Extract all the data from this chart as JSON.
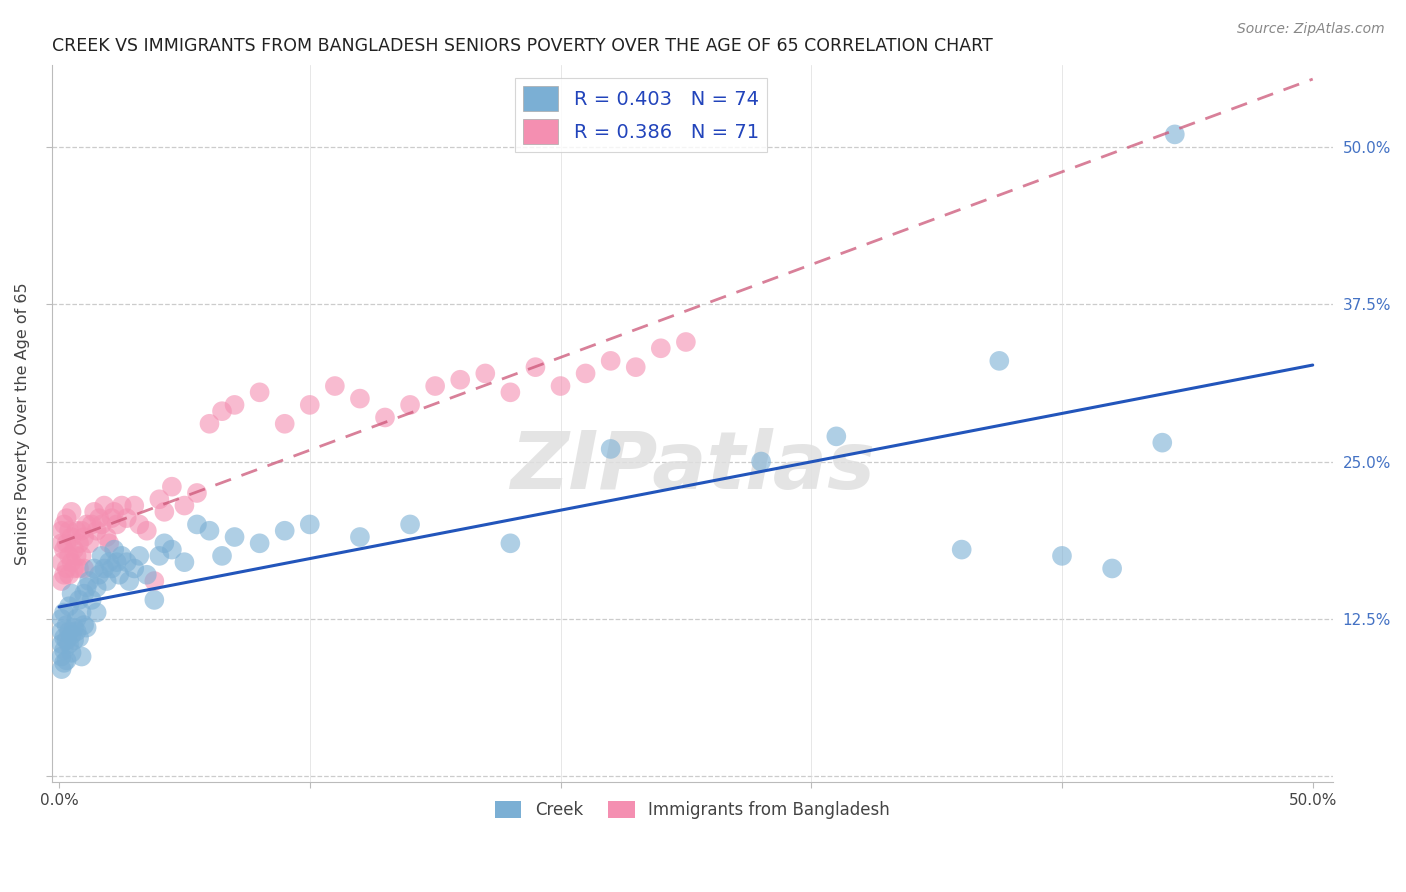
{
  "title": "CREEK VS IMMIGRANTS FROM BANGLADESH SENIORS POVERTY OVER THE AGE OF 65 CORRELATION CHART",
  "source": "Source: ZipAtlas.com",
  "ylabel": "Seniors Poverty Over the Age of 65",
  "blue_R": 0.403,
  "blue_N": 74,
  "pink_R": 0.386,
  "pink_N": 71,
  "blue_color": "#7bafd4",
  "pink_color": "#f48fb1",
  "blue_line_color": "#2255bb",
  "pink_line_color": "#cc5577",
  "legend_label_blue": "Creek",
  "legend_label_pink": "Immigrants from Bangladesh",
  "blue_x": [
    0.001,
    0.001,
    0.001,
    0.001,
    0.001,
    0.002,
    0.002,
    0.002,
    0.002,
    0.003,
    0.003,
    0.003,
    0.004,
    0.004,
    0.004,
    0.005,
    0.005,
    0.005,
    0.006,
    0.006,
    0.007,
    0.007,
    0.008,
    0.008,
    0.009,
    0.009,
    0.01,
    0.01,
    0.011,
    0.011,
    0.012,
    0.013,
    0.014,
    0.015,
    0.015,
    0.016,
    0.017,
    0.018,
    0.019,
    0.02,
    0.021,
    0.022,
    0.023,
    0.024,
    0.025,
    0.027,
    0.028,
    0.03,
    0.032,
    0.035,
    0.038,
    0.04,
    0.042,
    0.045,
    0.05,
    0.055,
    0.06,
    0.065,
    0.07,
    0.08,
    0.09,
    0.1,
    0.12,
    0.14,
    0.18,
    0.22,
    0.28,
    0.31,
    0.36,
    0.375,
    0.4,
    0.42,
    0.44,
    0.445
  ],
  "blue_y": [
    0.115,
    0.105,
    0.095,
    0.085,
    0.125,
    0.11,
    0.1,
    0.09,
    0.13,
    0.12,
    0.108,
    0.092,
    0.115,
    0.105,
    0.135,
    0.112,
    0.098,
    0.145,
    0.118,
    0.108,
    0.125,
    0.115,
    0.14,
    0.11,
    0.13,
    0.095,
    0.145,
    0.12,
    0.15,
    0.118,
    0.155,
    0.14,
    0.165,
    0.15,
    0.13,
    0.16,
    0.175,
    0.165,
    0.155,
    0.17,
    0.165,
    0.18,
    0.17,
    0.16,
    0.175,
    0.17,
    0.155,
    0.165,
    0.175,
    0.16,
    0.14,
    0.175,
    0.185,
    0.18,
    0.17,
    0.2,
    0.195,
    0.175,
    0.19,
    0.185,
    0.195,
    0.2,
    0.19,
    0.2,
    0.185,
    0.26,
    0.25,
    0.27,
    0.18,
    0.33,
    0.175,
    0.165,
    0.265,
    0.51
  ],
  "pink_x": [
    0.001,
    0.001,
    0.001,
    0.001,
    0.002,
    0.002,
    0.002,
    0.003,
    0.003,
    0.003,
    0.004,
    0.004,
    0.004,
    0.005,
    0.005,
    0.005,
    0.006,
    0.006,
    0.007,
    0.007,
    0.008,
    0.008,
    0.009,
    0.009,
    0.01,
    0.01,
    0.011,
    0.012,
    0.013,
    0.014,
    0.015,
    0.016,
    0.017,
    0.018,
    0.019,
    0.02,
    0.021,
    0.022,
    0.023,
    0.025,
    0.027,
    0.03,
    0.032,
    0.035,
    0.038,
    0.04,
    0.042,
    0.045,
    0.05,
    0.055,
    0.06,
    0.065,
    0.07,
    0.08,
    0.09,
    0.1,
    0.11,
    0.12,
    0.13,
    0.14,
    0.15,
    0.16,
    0.17,
    0.18,
    0.19,
    0.2,
    0.21,
    0.22,
    0.23,
    0.24,
    0.25
  ],
  "pink_y": [
    0.17,
    0.155,
    0.185,
    0.195,
    0.16,
    0.18,
    0.2,
    0.165,
    0.185,
    0.205,
    0.175,
    0.16,
    0.195,
    0.17,
    0.19,
    0.21,
    0.18,
    0.165,
    0.195,
    0.175,
    0.185,
    0.165,
    0.195,
    0.175,
    0.19,
    0.165,
    0.2,
    0.185,
    0.2,
    0.21,
    0.195,
    0.205,
    0.2,
    0.215,
    0.19,
    0.185,
    0.205,
    0.21,
    0.2,
    0.215,
    0.205,
    0.215,
    0.2,
    0.195,
    0.155,
    0.22,
    0.21,
    0.23,
    0.215,
    0.225,
    0.28,
    0.29,
    0.295,
    0.305,
    0.28,
    0.295,
    0.31,
    0.3,
    0.285,
    0.295,
    0.31,
    0.315,
    0.32,
    0.305,
    0.325,
    0.31,
    0.32,
    0.33,
    0.325,
    0.34,
    0.345
  ],
  "xlim": [
    -0.003,
    0.508
  ],
  "ylim": [
    -0.005,
    0.565
  ],
  "ytick_positions": [
    0.0,
    0.125,
    0.25,
    0.375,
    0.5
  ],
  "ytick_labels_right": [
    "",
    "12.5%",
    "25.0%",
    "37.5%",
    "50.0%"
  ],
  "xtick_positions": [
    0.0,
    0.1,
    0.2,
    0.3,
    0.4,
    0.5
  ],
  "xtick_labels": [
    "0.0%",
    "",
    "",
    "",
    "",
    "50.0%"
  ]
}
